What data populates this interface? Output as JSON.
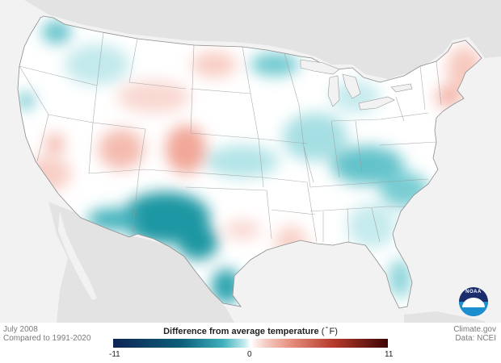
{
  "map": {
    "caption": {
      "period": "July 2008",
      "baseline": "Compared to 1991-2020"
    },
    "credits": {
      "site": "Climate.gov",
      "data_source": "Data: NCEI"
    },
    "legend": {
      "title": "Difference from average temperature",
      "unit": "( ̊ F)",
      "min_label": "-11",
      "mid_label": "0",
      "max_label": "11",
      "colors": {
        "cold_extreme": "#0d2454",
        "cold": "#3fb0bd",
        "neutral": "#ffffff",
        "warm": "#e48c7c",
        "warm_extreme": "#3d0505"
      }
    },
    "logo": {
      "name": "noaa-logo",
      "text": "NOAA"
    },
    "land_colors": {
      "outside_us": "#e3e3e3",
      "background": "#f2f2f2"
    }
  }
}
